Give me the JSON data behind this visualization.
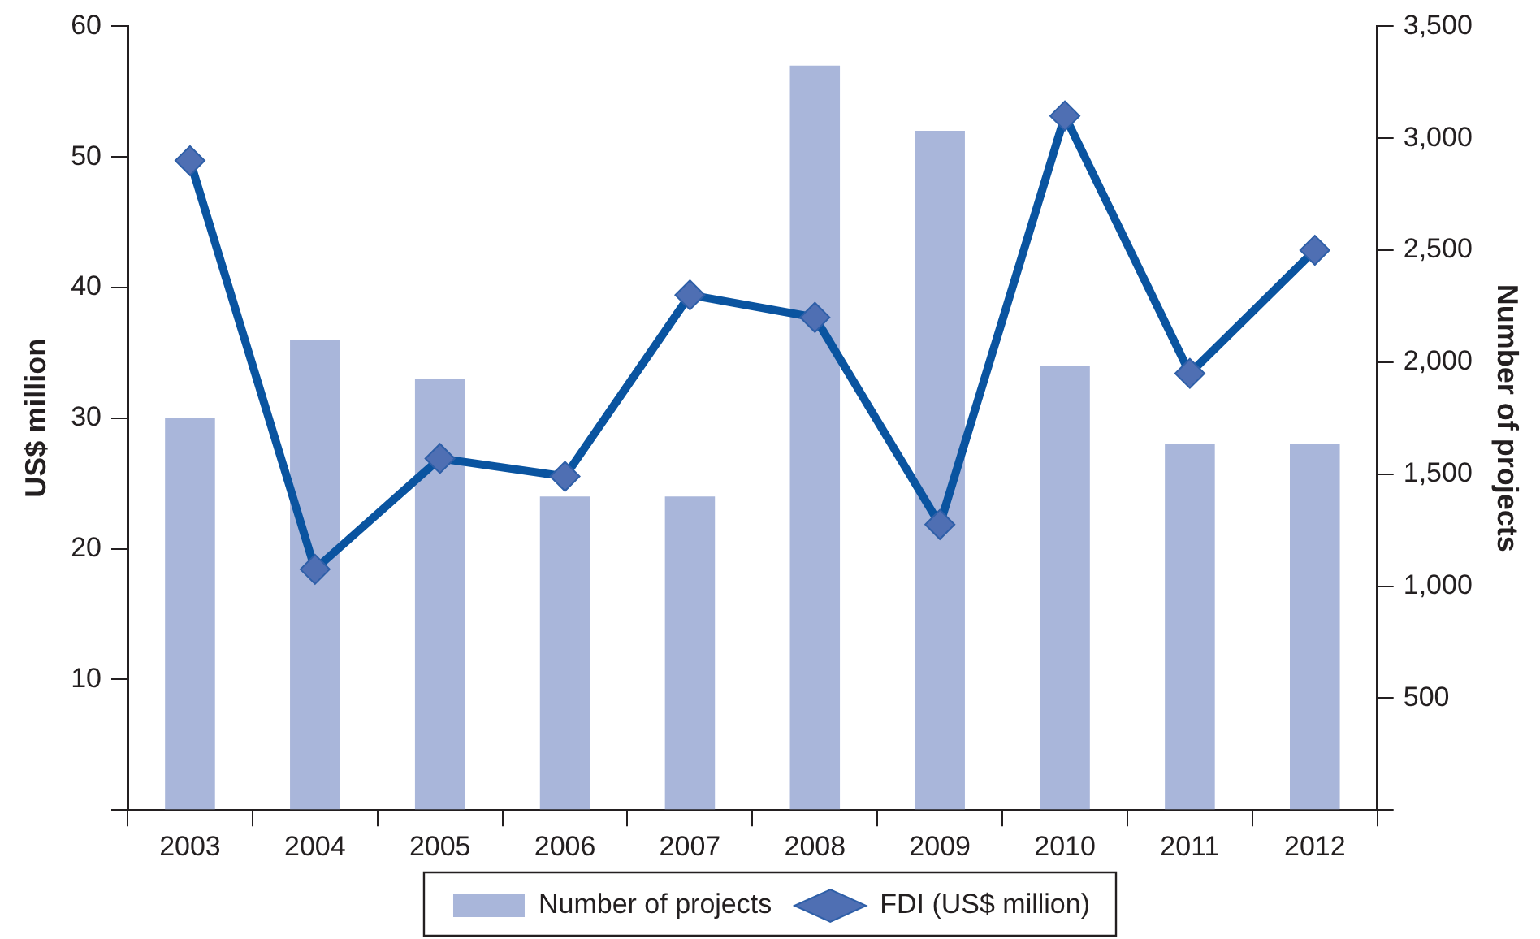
{
  "chart_data": {
    "type": "bar",
    "categories": [
      "2003",
      "2004",
      "2005",
      "2006",
      "2007",
      "2008",
      "2009",
      "2010",
      "2011",
      "2012"
    ],
    "series": [
      {
        "name": "Number of projects",
        "color": "#a9b6da",
        "values": [
          30,
          36,
          33,
          24,
          24,
          57,
          52,
          34,
          28,
          28
        ]
      },
      {
        "name": "FDI (US$ million)",
        "type": "line",
        "axis": "y2",
        "color": "#0a54a0",
        "values": [
          2900,
          1075,
          1570,
          1490,
          2300,
          2200,
          1275,
          3100,
          1950,
          2500
        ]
      }
    ],
    "ylabel": "US$ million",
    "y2label": "Number of projects",
    "ylim": [
      0,
      60
    ],
    "yticks": [
      {
        "value": 0,
        "label": null
      },
      10,
      20,
      30,
      40,
      50,
      60
    ],
    "y2lim": [
      0,
      3500
    ],
    "y2ticks": [
      {
        "value": 0,
        "label": null
      },
      {
        "value": 500,
        "label": "500"
      },
      {
        "value": 1000,
        "label": "1,000"
      },
      {
        "value": 1500,
        "label": "1,500"
      },
      {
        "value": 2000,
        "label": "2,000"
      },
      {
        "value": 2500,
        "label": "2,500"
      },
      {
        "value": 3000,
        "label": "3,000"
      },
      {
        "value": 3500,
        "label": "3,500"
      }
    ],
    "grid": false,
    "legend": "bottom",
    "marker": "diamond",
    "line_style": "solid"
  }
}
